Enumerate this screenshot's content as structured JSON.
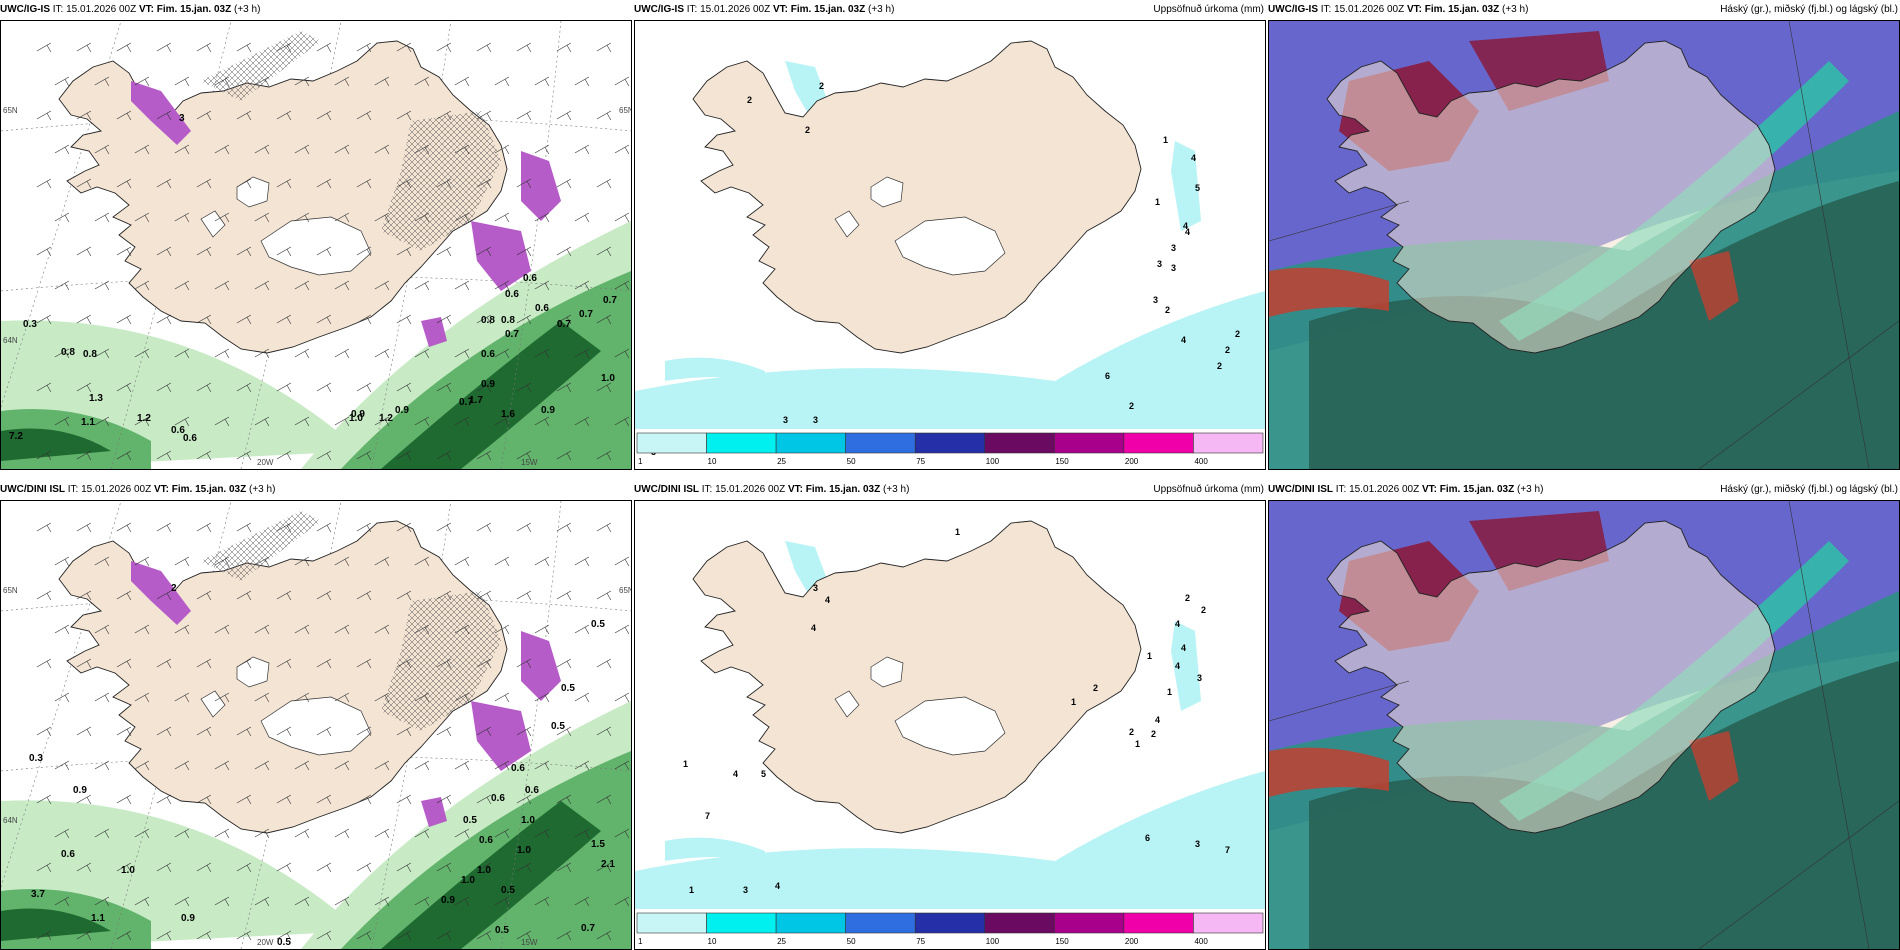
{
  "panels": [
    {
      "model": "UWC/IG-IS",
      "it": "IT: 15.01.2026 00Z",
      "vt": "VT: Fim. 15.jan. 03Z",
      "lead": "(+3 h)",
      "field": "",
      "kind": "wind",
      "lat_left": "65N",
      "lat_right": "65N",
      "lat_left2": "64N",
      "lon_a": "20W",
      "lon_b": "15W",
      "labels": [
        "3",
        "0.6",
        "0.6",
        "0.8",
        "0.8",
        "0.6",
        "0.7",
        "0.7",
        "0.7",
        "0.7",
        "0.6",
        "1.7",
        "1.6",
        "0.9",
        "1.0",
        "0.9",
        "0.7",
        "0.9",
        "1.2",
        "0.9",
        "1.0",
        "1.2",
        "0.6",
        "0.6",
        "1.1",
        "1.3",
        "0.8",
        "0.8",
        "7.2",
        "0.3"
      ]
    },
    {
      "model": "UWC/IG-IS",
      "it": "IT: 15.01.2026 00Z",
      "vt": "VT: Fim. 15.jan. 03Z",
      "lead": "(+3 h)",
      "field": "Uppsöfnuð úrkoma (mm)",
      "kind": "precip",
      "labels": [
        "2",
        "2",
        "2",
        "1",
        "1",
        "4",
        "5",
        "4",
        "3",
        "3",
        "4",
        "3",
        "3",
        "2",
        "4",
        "2",
        "2",
        "2",
        "6",
        "2",
        "3",
        "6",
        "3",
        "3"
      ],
      "colorbar": [
        "1",
        "10",
        "25",
        "50",
        "75",
        "100",
        "150",
        "200",
        "400"
      ]
    },
    {
      "model": "UWC/IG-IS",
      "it": "IT: 15.01.2026 00Z",
      "vt": "VT: Fim. 15.jan. 03Z",
      "lead": "(+3 h)",
      "field": "Háský (gr.), miðský (fj.bl.) og lágský (bl.)",
      "kind": "cloud"
    },
    {
      "model": "UWC/DINI ISL",
      "it": "IT: 15.01.2026 00Z",
      "vt": "VT: Fim. 15.jan. 03Z",
      "lead": "(+3 h)",
      "field": "",
      "kind": "wind",
      "lat_left": "65N",
      "lat_right": "65N",
      "lat_left2": "64N",
      "lon_a": "20W",
      "lon_b": "15W",
      "labels": [
        "2",
        "0.5",
        "0.5",
        "0.5",
        "0.6",
        "0.6",
        "0.5",
        "1.0",
        "1.0",
        "1.5",
        "2.1",
        "1.0",
        "0.5",
        "0.7",
        "0.5",
        "0.9",
        "1.0",
        "0.6",
        "0.6",
        "0.5",
        "0.3",
        "0.9",
        "0.6",
        "1.0",
        "1.1",
        "3.7",
        "0.9"
      ]
    },
    {
      "model": "UWC/DINI ISL",
      "it": "IT: 15.01.2026 00Z",
      "vt": "VT: Fim. 15.jan. 03Z",
      "lead": "(+3 h)",
      "field": "Uppsöfnuð úrkoma (mm)",
      "kind": "precip",
      "labels": [
        "1",
        "3",
        "4",
        "4",
        "2",
        "2",
        "4",
        "4",
        "1",
        "4",
        "3",
        "1",
        "4",
        "2",
        "1",
        "2",
        "2",
        "1",
        "1",
        "4",
        "5",
        "7",
        "6",
        "3",
        "7",
        "3",
        "4",
        "1"
      ],
      "colorbar": [
        "1",
        "10",
        "25",
        "50",
        "75",
        "100",
        "150",
        "200",
        "400"
      ]
    },
    {
      "model": "UWC/DINI ISL",
      "it": "IT: 15.01.2026 00Z",
      "vt": "VT: Fim. 15.jan. 03Z",
      "lead": "(+3 h)",
      "field": "Háský (gr.), miðský (fj.bl.) og lágský (bl.)",
      "kind": "cloud"
    }
  ],
  "colors": {
    "land": "#f3e4d4",
    "precip_light": "#b8f3f5",
    "green_light": "#c8ebc6",
    "green_mid": "#62b46c",
    "green_dark": "#1f6a30",
    "purple": "#b65cc8",
    "cloud_high": "#2f8f86",
    "cloud_mid": "#5655c8",
    "cloud_low": "#8a1b3e",
    "cb": [
      "#c8f6f6",
      "#00f0f0",
      "#00c6e6",
      "#2f6ee0",
      "#2530a8",
      "#6a0a60",
      "#a8008a",
      "#f000a8",
      "#f5b8f5"
    ]
  }
}
